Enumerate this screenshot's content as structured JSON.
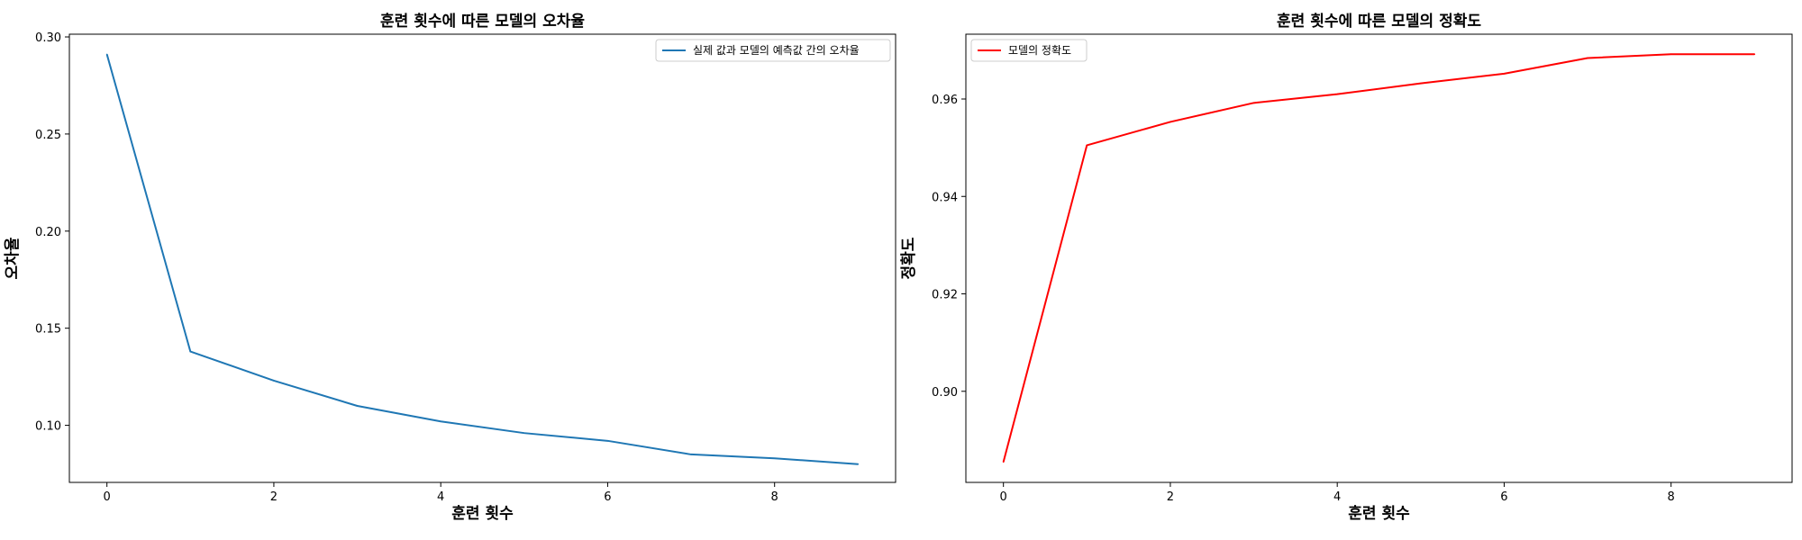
{
  "chart_data": [
    {
      "type": "line",
      "title": "훈련 횟수에 따른 모델의 오차율",
      "xlabel": "훈련 횟수",
      "ylabel": "오차율",
      "x": [
        0,
        1,
        2,
        3,
        4,
        5,
        6,
        7,
        8,
        9
      ],
      "series": [
        {
          "name": "실제 값과 모델의 예측값 간의 오차율",
          "color": "#1f77b4",
          "values": [
            0.291,
            0.138,
            0.123,
            0.11,
            0.102,
            0.096,
            0.092,
            0.085,
            0.083,
            0.08
          ]
        }
      ],
      "xlim": [
        -0.45,
        9.45
      ],
      "ylim": [
        0.0706,
        0.3014
      ],
      "xticks": [
        0,
        2,
        4,
        6,
        8
      ],
      "yticks": [
        "0.10",
        "0.15",
        "0.20",
        "0.25",
        "0.30"
      ],
      "grid": false,
      "legend": "upper right"
    },
    {
      "type": "line",
      "title": "훈련 횟수에 따른 모델의 정확도",
      "xlabel": "훈련 횟수",
      "ylabel": "정확도",
      "x": [
        0,
        1,
        2,
        3,
        4,
        5,
        6,
        7,
        8,
        9
      ],
      "series": [
        {
          "name": "모델의 정확도",
          "color": "#ff0000",
          "values": [
            0.8855,
            0.9505,
            0.9553,
            0.9592,
            0.961,
            0.9632,
            0.9652,
            0.9684,
            0.9692,
            0.9692
          ]
        }
      ],
      "xlim": [
        -0.45,
        9.45
      ],
      "ylim": [
        0.8813,
        0.9733
      ],
      "xticks": [
        0,
        2,
        4,
        6,
        8
      ],
      "yticks": [
        "0.90",
        "0.92",
        "0.94",
        "0.96"
      ],
      "grid": false,
      "legend": "upper left"
    }
  ]
}
